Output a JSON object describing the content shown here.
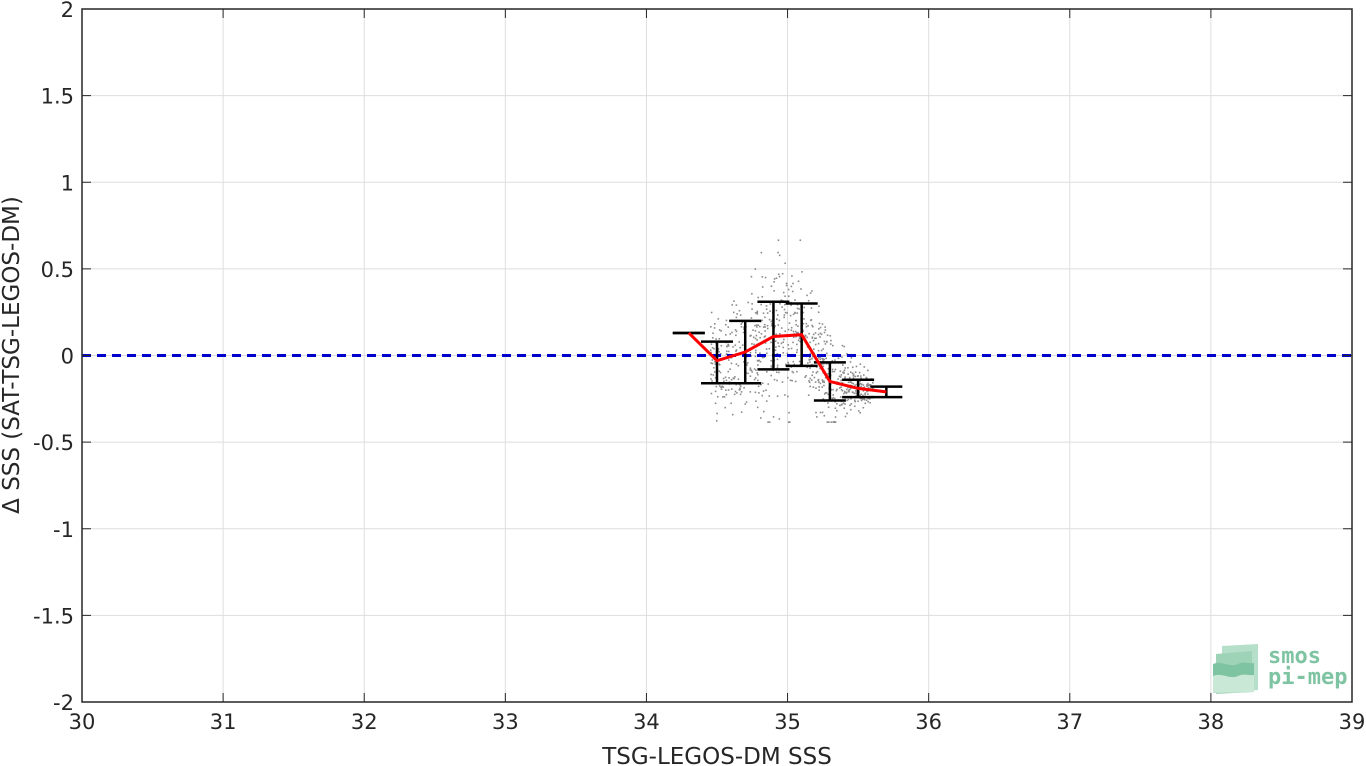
{
  "chart_data": {
    "type": "scatter",
    "xlabel": "TSG-LEGOS-DM SSS",
    "ylabel": "Δ SSS (SAT-TSG-LEGOS-DM)",
    "xlim": [
      30,
      39
    ],
    "ylim": [
      -2,
      2
    ],
    "xticks": [
      "30",
      "31",
      "32",
      "33",
      "34",
      "35",
      "36",
      "37",
      "38",
      "39"
    ],
    "yticks": [
      "2",
      "1.5",
      "1",
      "0.5",
      "0",
      "-0.5",
      "-1",
      "-1.5",
      "-2"
    ],
    "grid": true,
    "colors": {
      "scatter": "#8c8c8c",
      "mean_line": "#ff0000",
      "error_bars": "#000000",
      "zero_line": "#0000cc",
      "grid": "#dedede",
      "axes": "#262626",
      "logo": "#7fc4a2"
    },
    "zero_line": {
      "y": 0,
      "style": "dashed"
    },
    "binned_mean": {
      "x": [
        34.3,
        34.5,
        34.7,
        34.9,
        35.1,
        35.3,
        35.5,
        35.7
      ],
      "y": [
        0.13,
        -0.03,
        0.02,
        0.11,
        0.12,
        -0.15,
        -0.19,
        -0.21
      ],
      "err_low": [
        0.13,
        -0.16,
        -0.16,
        -0.08,
        -0.06,
        -0.26,
        -0.24,
        -0.24
      ],
      "err_high": [
        0.13,
        0.08,
        0.2,
        0.31,
        0.3,
        -0.04,
        -0.14,
        -0.18
      ]
    },
    "scatter_region": {
      "x_range": [
        34.4,
        35.6
      ],
      "y_range": [
        -0.38,
        0.67
      ],
      "approx_points": 800
    }
  },
  "logo": {
    "line1": "smos",
    "line2": "pi-mep",
    "icon": "smos-pimep-logo-icon"
  }
}
